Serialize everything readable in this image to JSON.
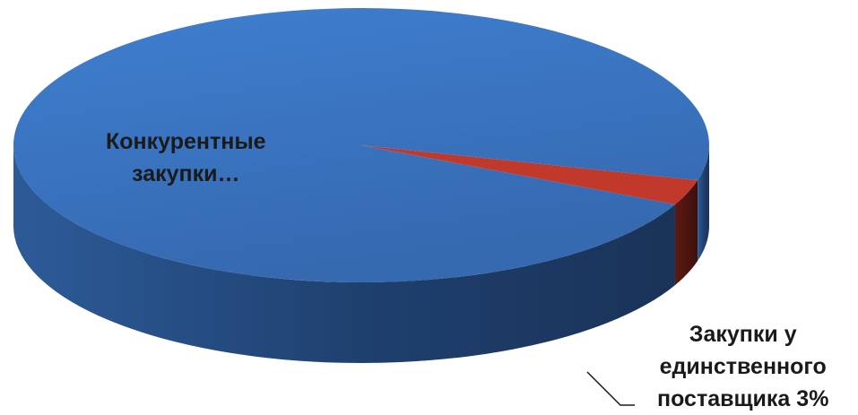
{
  "chart_data": {
    "type": "pie",
    "style": "3d",
    "slices": [
      {
        "label": "Конкурентные закупки…",
        "value": 97,
        "color": "#3a73bf"
      },
      {
        "label": "Закупки у единственного поставщика",
        "value": 3,
        "value_label": "3%",
        "color": "#c0392b"
      }
    ],
    "labels": {
      "main": {
        "line1": "Конкурентные",
        "line2": "закупки…"
      },
      "small": {
        "line1": "Закупки у",
        "line2": "единственного",
        "line3": "поставщика 3%"
      }
    }
  }
}
